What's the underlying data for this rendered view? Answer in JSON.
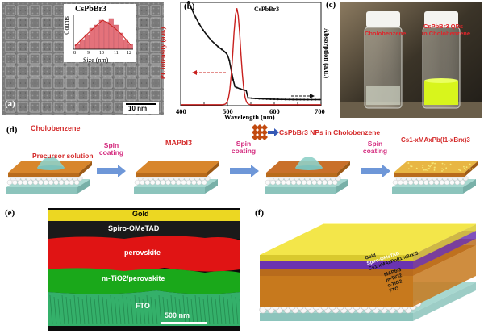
{
  "panel_labels": {
    "a": "(a)",
    "b": "(b)",
    "c": "(c)",
    "d": "(d)",
    "e": "(e)",
    "f": "(f)"
  },
  "a": {
    "inset_title": "CsPbBr3",
    "inset_ylabel": "Counts",
    "inset_xlabel": "Size (nm)",
    "inset_ticks": [
      "8",
      "9",
      "10",
      "11",
      "12"
    ],
    "scale_bar": "10 nm"
  },
  "b": {
    "title": "CsPbBr3",
    "xlabel": "Wavelength (nm)",
    "ylabel_left": "PL intensity (a.u.)",
    "ylabel_right": "Absorption (a.u.)",
    "xticks": [
      "400",
      "500",
      "600",
      "700"
    ]
  },
  "c": {
    "left_vial": "Cholobenzene",
    "right_vial_line1": "CsPbBr3 QDs",
    "right_vial_line2": "in Cholobenzene"
  },
  "d": {
    "step1_top": "Cholobenzene",
    "step1_bottom": "Precursor solution",
    "spin1": "Spin coating",
    "step2": "MAPbI3",
    "spin2": "Spin coating",
    "nps_label": "CsPbBr3 NPs in Cholobenzene",
    "spin3": "Spin coating",
    "final": "Cs1-xMAxPb(I1-xBrx)3"
  },
  "e": {
    "layers": [
      "Gold",
      "Spiro-OMeTAD",
      "perovskite",
      "m-TiO2/perovskite",
      "FTO"
    ],
    "scale_bar": "500 nm"
  },
  "f": {
    "layers": [
      "Gold",
      "Spiro-OMeTAD",
      "Cs1-xMAxPb(I1-xBrx)3",
      "MAPbI3",
      "m-TiO2",
      "c-TiO2",
      "FTO"
    ]
  },
  "colors": {
    "pl": "#c8201e",
    "abs": "#111111",
    "gold": "#f3e64a",
    "perovskite": "#d8862c",
    "purple": "#7a3fbf",
    "tio2": "#f2f2f2",
    "fto": "#a8d8d0"
  }
}
